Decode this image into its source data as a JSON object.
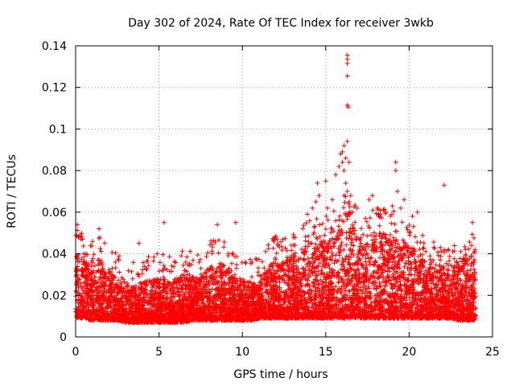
{
  "chart_data": {
    "type": "scatter",
    "title": "Day 302 of 2024, Rate Of TEC Index for receiver 3wkb",
    "xlabel": "GPS time / hours",
    "ylabel": "ROTI / TECUs",
    "xlim": [
      0,
      25
    ],
    "ylim": [
      0,
      0.14
    ],
    "xticks": [
      0,
      5,
      10,
      15,
      20,
      25
    ],
    "xtick_labels": [
      "0",
      "5",
      "10",
      "15",
      "20",
      "25"
    ],
    "yticks": [
      0,
      0.02,
      0.04,
      0.06,
      0.08,
      0.1,
      0.12,
      0.14
    ],
    "ytick_labels": [
      "0",
      "0.02",
      "0.04",
      "0.06",
      "0.08",
      "0.1",
      "0.12",
      "0.14"
    ],
    "grid": true,
    "marker": "+",
    "series_color": "#ff0000",
    "series": [
      {
        "name": "ROTI",
        "envelope": {
          "x": [
            0,
            0.5,
            1,
            1.5,
            2,
            2.5,
            3,
            3.5,
            4,
            4.5,
            5,
            5.5,
            6,
            6.5,
            7,
            7.5,
            8,
            8.5,
            9,
            9.5,
            10,
            10.5,
            11,
            11.5,
            12,
            12.5,
            13,
            13.5,
            14,
            14.5,
            15,
            15.5,
            16,
            16.5,
            17,
            17.5,
            18,
            18.5,
            19,
            19.5,
            20,
            20.5,
            21,
            21.5,
            22,
            22.5,
            23,
            23.5,
            24
          ],
          "low": [
            0.009,
            0.009,
            0.008,
            0.008,
            0.008,
            0.008,
            0.007,
            0.007,
            0.007,
            0.007,
            0.007,
            0.007,
            0.007,
            0.007,
            0.008,
            0.008,
            0.008,
            0.008,
            0.008,
            0.008,
            0.008,
            0.008,
            0.009,
            0.009,
            0.009,
            0.009,
            0.009,
            0.009,
            0.009,
            0.009,
            0.009,
            0.009,
            0.009,
            0.009,
            0.009,
            0.009,
            0.009,
            0.009,
            0.009,
            0.009,
            0.009,
            0.009,
            0.009,
            0.009,
            0.009,
            0.009,
            0.008,
            0.008,
            0.008
          ],
          "high": [
            0.04,
            0.038,
            0.036,
            0.038,
            0.032,
            0.028,
            0.024,
            0.024,
            0.026,
            0.028,
            0.028,
            0.028,
            0.028,
            0.03,
            0.03,
            0.028,
            0.034,
            0.036,
            0.034,
            0.028,
            0.028,
            0.026,
            0.026,
            0.034,
            0.038,
            0.036,
            0.04,
            0.042,
            0.045,
            0.048,
            0.046,
            0.052,
            0.06,
            0.055,
            0.05,
            0.046,
            0.052,
            0.05,
            0.05,
            0.048,
            0.046,
            0.04,
            0.036,
            0.036,
            0.034,
            0.036,
            0.038,
            0.038,
            0.04
          ]
        },
        "count": 7000,
        "outliers": [
          {
            "x": 0.1,
            "y": 0.054
          },
          {
            "x": 0.2,
            "y": 0.048
          },
          {
            "x": 0.4,
            "y": 0.047
          },
          {
            "x": 1.4,
            "y": 0.052
          },
          {
            "x": 3.8,
            "y": 0.045
          },
          {
            "x": 5.3,
            "y": 0.055
          },
          {
            "x": 8.5,
            "y": 0.054
          },
          {
            "x": 9.6,
            "y": 0.055
          },
          {
            "x": 13.9,
            "y": 0.059
          },
          {
            "x": 14.2,
            "y": 0.062
          },
          {
            "x": 14.4,
            "y": 0.065
          },
          {
            "x": 14.5,
            "y": 0.074
          },
          {
            "x": 14.6,
            "y": 0.068
          },
          {
            "x": 15.0,
            "y": 0.075
          },
          {
            "x": 15.1,
            "y": 0.062
          },
          {
            "x": 15.4,
            "y": 0.066
          },
          {
            "x": 15.6,
            "y": 0.078
          },
          {
            "x": 15.8,
            "y": 0.082
          },
          {
            "x": 15.9,
            "y": 0.088
          },
          {
            "x": 16.0,
            "y": 0.089
          },
          {
            "x": 16.0,
            "y": 0.084
          },
          {
            "x": 16.1,
            "y": 0.092
          },
          {
            "x": 16.1,
            "y": 0.08
          },
          {
            "x": 16.2,
            "y": 0.086
          },
          {
            "x": 16.2,
            "y": 0.074
          },
          {
            "x": 16.3,
            "y": 0.094
          },
          {
            "x": 16.3,
            "y": 0.07
          },
          {
            "x": 16.4,
            "y": 0.084
          },
          {
            "x": 16.4,
            "y": 0.065
          },
          {
            "x": 16.5,
            "y": 0.068
          },
          {
            "x": 16.6,
            "y": 0.06
          },
          {
            "x": 16.3,
            "y": 0.1355
          },
          {
            "x": 16.3,
            "y": 0.1335
          },
          {
            "x": 16.3,
            "y": 0.1315
          },
          {
            "x": 16.3,
            "y": 0.1255
          },
          {
            "x": 16.3,
            "y": 0.1115
          },
          {
            "x": 16.35,
            "y": 0.1105
          },
          {
            "x": 17.6,
            "y": 0.066
          },
          {
            "x": 17.8,
            "y": 0.068
          },
          {
            "x": 18.1,
            "y": 0.062
          },
          {
            "x": 18.6,
            "y": 0.06
          },
          {
            "x": 19.0,
            "y": 0.063
          },
          {
            "x": 19.2,
            "y": 0.084
          },
          {
            "x": 19.2,
            "y": 0.08
          },
          {
            "x": 19.3,
            "y": 0.07
          },
          {
            "x": 19.5,
            "y": 0.062
          },
          {
            "x": 19.7,
            "y": 0.066
          },
          {
            "x": 20.2,
            "y": 0.058
          },
          {
            "x": 20.5,
            "y": 0.06
          },
          {
            "x": 22.1,
            "y": 0.073
          },
          {
            "x": 23.8,
            "y": 0.055
          }
        ]
      }
    ]
  }
}
